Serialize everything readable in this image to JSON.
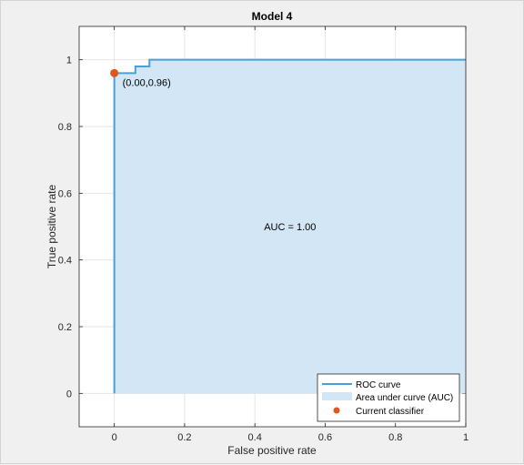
{
  "chart_data": {
    "type": "area",
    "title": "Model 4",
    "xlabel": "False positive rate",
    "ylabel": "True positive rate",
    "xlim": [
      -0.1,
      1.0
    ],
    "ylim": [
      -0.1,
      1.1
    ],
    "xticks": [
      0,
      0.2,
      0.4,
      0.6,
      0.8,
      1
    ],
    "xtick_labels": [
      "0",
      "0.2",
      "0.4",
      "0.6",
      "0.8",
      "1"
    ],
    "yticks": [
      0,
      0.2,
      0.4,
      0.6,
      0.8,
      1
    ],
    "ytick_labels": [
      "0",
      "0.2",
      "0.4",
      "0.6",
      "0.8",
      "1"
    ],
    "grid": true,
    "series": [
      {
        "name": "ROC curve",
        "x": [
          0,
          0,
          0.06,
          0.06,
          0.1,
          0.1,
          1.0
        ],
        "y": [
          0,
          0.96,
          0.96,
          0.98,
          0.98,
          1.0,
          1.0
        ]
      }
    ],
    "area_label": "Area under curve (AUC)",
    "current_classifier": {
      "name": "Current classifier",
      "x": 0.0,
      "y": 0.96,
      "label": "(0.00,0.96)"
    },
    "auc_text": "AUC = 1.00",
    "legend_position": "bottom-right",
    "colors": {
      "curve": "#4a9fd8",
      "area": "#d3e6f5",
      "point": "#e0561b"
    }
  }
}
